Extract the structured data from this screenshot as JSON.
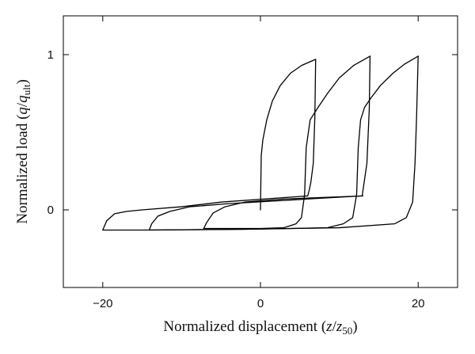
{
  "chart_data": {
    "type": "line",
    "xlabel": {
      "prefix": "Normalized displacement (",
      "var": "z",
      "slash": "/",
      "denom": "z",
      "denom_sub": "50",
      "suffix": ")"
    },
    "ylabel": {
      "prefix": "Normalized load (",
      "var": "q",
      "slash": "/",
      "denom": "q",
      "denom_sub": "ult",
      "suffix": ")"
    },
    "xlim": [
      -25,
      25
    ],
    "ylim": [
      -0.5,
      1.25
    ],
    "x_ticks": [
      -20,
      0,
      20
    ],
    "x_tick_labels": [
      "−20",
      "0",
      "20"
    ],
    "y_ticks": [
      0,
      1
    ],
    "y_tick_labels": [
      "0",
      "1"
    ],
    "grid": false,
    "legend": "none",
    "series": [
      {
        "points": [
          [
            0,
            0
          ],
          [
            0.05,
            0.18
          ],
          [
            0.1,
            0.35
          ],
          [
            0.3,
            0.45
          ],
          [
            0.8,
            0.58
          ],
          [
            1.5,
            0.7
          ],
          [
            2.5,
            0.8
          ],
          [
            3.8,
            0.88
          ],
          [
            5.2,
            0.93
          ],
          [
            7,
            0.97
          ],
          [
            6.9,
            0.6
          ],
          [
            6.7,
            0.3
          ],
          [
            6.4,
            0.18
          ],
          [
            6.2,
            0.13
          ],
          [
            6.0,
            0.09
          ],
          [
            -5,
            0.05
          ],
          [
            -10,
            0.02
          ],
          [
            -15,
            0.0
          ],
          [
            -17,
            -0.01
          ],
          [
            -18.5,
            -0.025
          ],
          [
            -19.5,
            -0.07
          ],
          [
            -20,
            -0.13
          ],
          [
            -15,
            -0.13
          ],
          [
            -10,
            -0.128
          ],
          [
            -2,
            -0.125
          ],
          [
            4,
            -0.12
          ],
          [
            10,
            -0.115
          ],
          [
            17,
            -0.09
          ],
          [
            18.5,
            -0.05
          ],
          [
            19.3,
            0.05
          ],
          [
            19.6,
            0.3
          ],
          [
            19.8,
            0.6
          ],
          [
            20,
            0.99
          ]
        ]
      },
      {
        "points": [
          [
            13.9,
            0.99
          ],
          [
            13.8,
            0.65
          ],
          [
            13.5,
            0.3
          ],
          [
            13.1,
            0.16
          ],
          [
            12.9,
            0.09
          ],
          [
            6,
            0.07
          ],
          [
            -4,
            0.04
          ],
          [
            -9,
            0.02
          ],
          [
            -11.5,
            -0.01
          ],
          [
            -13,
            -0.04
          ],
          [
            -13.8,
            -0.09
          ],
          [
            -14.1,
            -0.13
          ],
          [
            -9,
            -0.128
          ],
          [
            -2,
            -0.125
          ],
          [
            4,
            -0.12
          ],
          [
            8.5,
            -0.115
          ],
          [
            10.5,
            -0.09
          ],
          [
            11.7,
            -0.05
          ],
          [
            12.2,
            0.1
          ],
          [
            12.4,
            0.4
          ],
          [
            12.7,
            0.58
          ],
          [
            13.2,
            0.66
          ],
          [
            14,
            0.72
          ],
          [
            15.2,
            0.8
          ],
          [
            16.8,
            0.88
          ],
          [
            18.3,
            0.94
          ],
          [
            20,
            0.99
          ]
        ]
      },
      {
        "points": [
          [
            13,
            0.09
          ],
          [
            3,
            0.07
          ],
          [
            -2,
            0.05
          ],
          [
            -4.5,
            0.02
          ],
          [
            -6,
            -0.02
          ],
          [
            -6.8,
            -0.08
          ],
          [
            -7.2,
            -0.12
          ],
          [
            -4,
            -0.12
          ],
          [
            0,
            -0.12
          ],
          [
            3,
            -0.115
          ],
          [
            4.5,
            -0.09
          ],
          [
            5.2,
            -0.05
          ],
          [
            5.6,
            0.1
          ],
          [
            5.8,
            0.4
          ],
          [
            6.3,
            0.58
          ],
          [
            7.3,
            0.66
          ],
          [
            8.5,
            0.75
          ],
          [
            10,
            0.85
          ],
          [
            11.8,
            0.93
          ],
          [
            13.9,
            0.99
          ]
        ]
      }
    ]
  }
}
